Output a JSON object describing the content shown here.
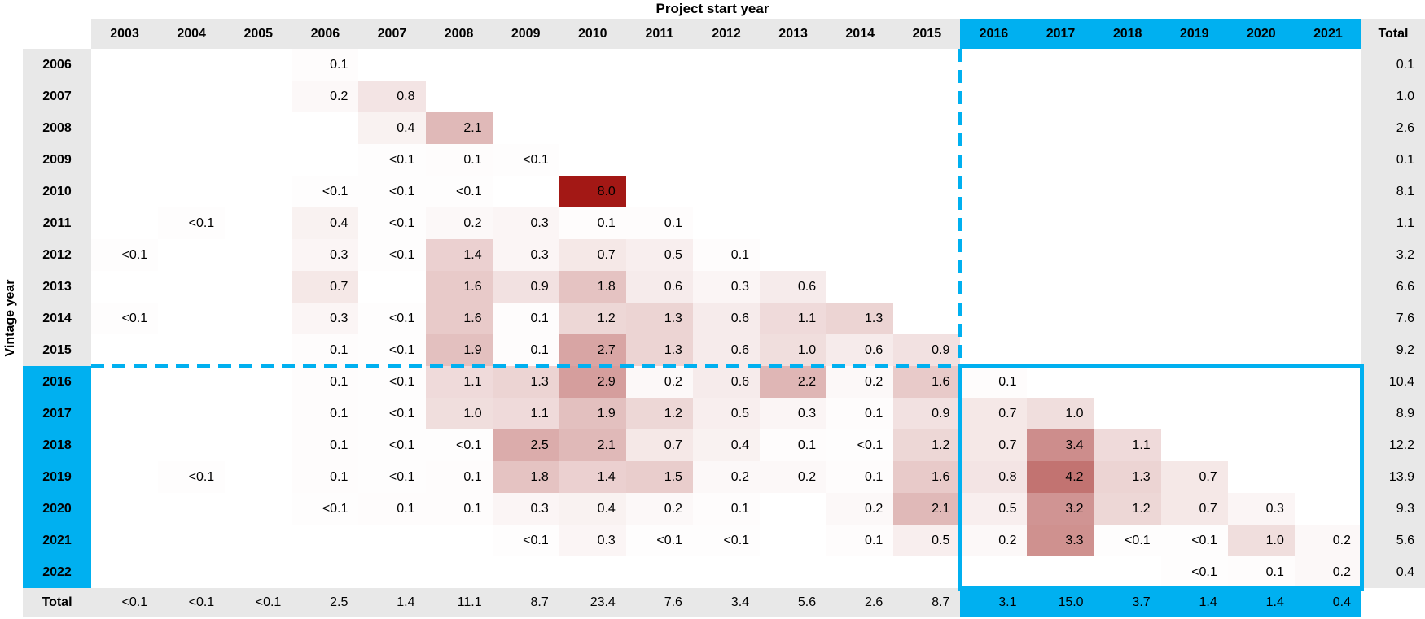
{
  "chart_data": {
    "type": "heatmap",
    "xlabel": "Project start year",
    "ylabel": "Vintage year",
    "total_label": "Total",
    "x_categories": [
      "2003",
      "2004",
      "2005",
      "2006",
      "2007",
      "2008",
      "2009",
      "2010",
      "2011",
      "2012",
      "2013",
      "2014",
      "2015",
      "2016",
      "2017",
      "2018",
      "2019",
      "2020",
      "2021"
    ],
    "y_categories": [
      "2006",
      "2007",
      "2008",
      "2009",
      "2010",
      "2011",
      "2012",
      "2013",
      "2014",
      "2015",
      "2016",
      "2017",
      "2018",
      "2019",
      "2020",
      "2021",
      "2022"
    ],
    "matrix": [
      [
        "",
        "",
        "",
        "0.1",
        "",
        "",
        "",
        "",
        "",
        "",
        "",
        "",
        "",
        "",
        "",
        "",
        "",
        "",
        ""
      ],
      [
        "",
        "",
        "",
        "0.2",
        "0.8",
        "",
        "",
        "",
        "",
        "",
        "",
        "",
        "",
        "",
        "",
        "",
        "",
        "",
        ""
      ],
      [
        "",
        "",
        "",
        "",
        "0.4",
        "2.1",
        "",
        "",
        "",
        "",
        "",
        "",
        "",
        "",
        "",
        "",
        "",
        "",
        ""
      ],
      [
        "",
        "",
        "",
        "",
        "<0.1",
        "0.1",
        "<0.1",
        "",
        "",
        "",
        "",
        "",
        "",
        "",
        "",
        "",
        "",
        "",
        ""
      ],
      [
        "",
        "",
        "",
        "<0.1",
        "<0.1",
        "<0.1",
        "",
        "8.0",
        "",
        "",
        "",
        "",
        "",
        "",
        "",
        "",
        "",
        "",
        ""
      ],
      [
        "",
        "<0.1",
        "",
        "0.4",
        "<0.1",
        "0.2",
        "0.3",
        "0.1",
        "0.1",
        "",
        "",
        "",
        "",
        "",
        "",
        "",
        "",
        "",
        ""
      ],
      [
        "<0.1",
        "",
        "",
        "0.3",
        "<0.1",
        "1.4",
        "0.3",
        "0.7",
        "0.5",
        "0.1",
        "",
        "",
        "",
        "",
        "",
        "",
        "",
        "",
        ""
      ],
      [
        "",
        "",
        "",
        "0.7",
        "",
        "1.6",
        "0.9",
        "1.8",
        "0.6",
        "0.3",
        "0.6",
        "",
        "",
        "",
        "",
        "",
        "",
        "",
        ""
      ],
      [
        "<0.1",
        "",
        "",
        "0.3",
        "<0.1",
        "1.6",
        "0.1",
        "1.2",
        "1.3",
        "0.6",
        "1.1",
        "1.3",
        "",
        "",
        "",
        "",
        "",
        "",
        ""
      ],
      [
        "",
        "",
        "",
        "0.1",
        "<0.1",
        "1.9",
        "0.1",
        "2.7",
        "1.3",
        "0.6",
        "1.0",
        "0.6",
        "0.9",
        "",
        "",
        "",
        "",
        "",
        ""
      ],
      [
        "",
        "",
        "",
        "0.1",
        "<0.1",
        "1.1",
        "1.3",
        "2.9",
        "0.2",
        "0.6",
        "2.2",
        "0.2",
        "1.6",
        "0.1",
        "",
        "",
        "",
        "",
        ""
      ],
      [
        "",
        "",
        "",
        "0.1",
        "<0.1",
        "1.0",
        "1.1",
        "1.9",
        "1.2",
        "0.5",
        "0.3",
        "0.1",
        "0.9",
        "0.7",
        "1.0",
        "",
        "",
        "",
        ""
      ],
      [
        "",
        "",
        "",
        "0.1",
        "<0.1",
        "<0.1",
        "2.5",
        "2.1",
        "0.7",
        "0.4",
        "0.1",
        "<0.1",
        "1.2",
        "0.7",
        "3.4",
        "1.1",
        "",
        "",
        ""
      ],
      [
        "",
        "<0.1",
        "",
        "0.1",
        "<0.1",
        "0.1",
        "1.8",
        "1.4",
        "1.5",
        "0.2",
        "0.2",
        "0.1",
        "1.6",
        "0.8",
        "4.2",
        "1.3",
        "0.7",
        "",
        ""
      ],
      [
        "",
        "",
        "",
        "<0.1",
        "0.1",
        "0.1",
        "0.3",
        "0.4",
        "0.2",
        "0.1",
        "",
        "0.2",
        "2.1",
        "0.5",
        "3.2",
        "1.2",
        "0.7",
        "0.3",
        ""
      ],
      [
        "",
        "",
        "",
        "",
        "",
        "",
        "<0.1",
        "0.3",
        "<0.1",
        "<0.1",
        "",
        "0.1",
        "0.5",
        "0.2",
        "3.3",
        "<0.1",
        "<0.1",
        "1.0",
        "0.2"
      ],
      [
        "",
        "",
        "",
        "",
        "",
        "",
        "",
        "",
        "",
        "",
        "",
        "",
        "",
        "",
        "",
        "",
        "<0.1",
        "0.1",
        "0.2"
      ]
    ],
    "row_totals": [
      "0.1",
      "1.0",
      "2.6",
      "0.1",
      "8.1",
      "1.1",
      "3.2",
      "6.6",
      "7.6",
      "9.2",
      "10.4",
      "8.9",
      "12.2",
      "13.9",
      "9.3",
      "5.6",
      "0.4"
    ],
    "col_totals": [
      "<0.1",
      "<0.1",
      "<0.1",
      "2.5",
      "1.4",
      "11.1",
      "8.7",
      "23.4",
      "7.6",
      "3.4",
      "5.6",
      "2.6",
      "8.7",
      "3.1",
      "15.0",
      "3.7",
      "1.4",
      "1.4",
      "0.4"
    ],
    "grand_total": "",
    "highlight": {
      "cols_from": "2016",
      "rows_from": "2016"
    }
  },
  "colors": {
    "accent_blue": "#00b0f0",
    "header_gray": "#e8e8e8",
    "heat_low": "#ffffff",
    "heat_high": "#b65856",
    "heat_peak": "#a31815",
    "text": "#000000"
  }
}
